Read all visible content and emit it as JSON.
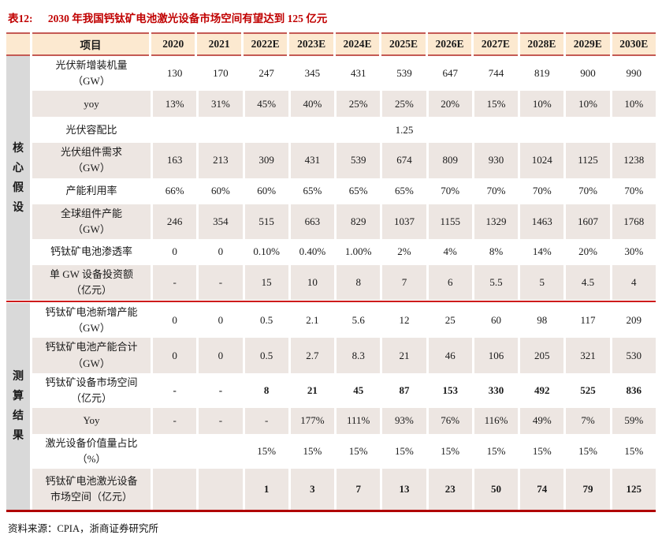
{
  "title": {
    "tag": "表12:",
    "text": "2030 年我国钙钛矿电池激光设备市场空间有望达到 125 亿元"
  },
  "colors": {
    "title_red": "#C00000",
    "header_bg": "#FCE9D0",
    "header_border": "#C45A54",
    "stripe_bg": "#EDE6E2",
    "group_bg": "#D9D9D9",
    "section_divider": "#CE1B1B",
    "bottom_border": "#B00000"
  },
  "table": {
    "header": [
      "项目",
      "2020",
      "2021",
      "2022E",
      "2023E",
      "2024E",
      "2025E",
      "2026E",
      "2027E",
      "2028E",
      "2029E",
      "2030E"
    ],
    "groups": [
      {
        "label": "核心假设",
        "rows": [
          {
            "label": "光伏新增装机量\n（GW）",
            "bold": false,
            "values": [
              "130",
              "170",
              "247",
              "345",
              "431",
              "539",
              "647",
              "744",
              "819",
              "900",
              "990"
            ]
          },
          {
            "label": "yoy",
            "bold": false,
            "values": [
              "13%",
              "31%",
              "45%",
              "40%",
              "25%",
              "25%",
              "20%",
              "15%",
              "10%",
              "10%",
              "10%"
            ]
          },
          {
            "label": "光伏容配比",
            "bold": false,
            "values": [
              "",
              "",
              "",
              "",
              "",
              "1.25",
              "",
              "",
              "",
              "",
              ""
            ]
          },
          {
            "label": "光伏组件需求\n（GW）",
            "bold": false,
            "values": [
              "163",
              "213",
              "309",
              "431",
              "539",
              "674",
              "809",
              "930",
              "1024",
              "1125",
              "1238"
            ]
          },
          {
            "label": "产能利用率",
            "bold": false,
            "values": [
              "66%",
              "60%",
              "60%",
              "65%",
              "65%",
              "65%",
              "70%",
              "70%",
              "70%",
              "70%",
              "70%"
            ]
          },
          {
            "label": "全球组件产能\n（GW）",
            "bold": false,
            "values": [
              "246",
              "354",
              "515",
              "663",
              "829",
              "1037",
              "1155",
              "1329",
              "1463",
              "1607",
              "1768"
            ]
          },
          {
            "label": "钙钛矿电池渗透率",
            "bold": false,
            "values": [
              "0",
              "0",
              "0.10%",
              "0.40%",
              "1.00%",
              "2%",
              "4%",
              "8%",
              "14%",
              "20%",
              "30%"
            ]
          },
          {
            "label": "单 GW 设备投资额\n（亿元）",
            "bold": false,
            "values": [
              "-",
              "-",
              "15",
              "10",
              "8",
              "7",
              "6",
              "5.5",
              "5",
              "4.5",
              "4"
            ]
          }
        ]
      },
      {
        "label": "测算结果",
        "rows": [
          {
            "label": "钙钛矿电池新增产能\n（GW）",
            "bold": false,
            "values": [
              "0",
              "0",
              "0.5",
              "2.1",
              "5.6",
              "12",
              "25",
              "60",
              "98",
              "117",
              "209"
            ]
          },
          {
            "label": "钙钛矿电池产能合计\n（GW）",
            "bold": false,
            "values": [
              "0",
              "0",
              "0.5",
              "2.7",
              "8.3",
              "21",
              "46",
              "106",
              "205",
              "321",
              "530"
            ]
          },
          {
            "label": "钙钛矿设备市场空间\n（亿元）",
            "bold": true,
            "values": [
              "-",
              "-",
              "8",
              "21",
              "45",
              "87",
              "153",
              "330",
              "492",
              "525",
              "836"
            ]
          },
          {
            "label": "Yoy",
            "bold": false,
            "values": [
              "-",
              "-",
              "-",
              "177%",
              "111%",
              "93%",
              "76%",
              "116%",
              "49%",
              "7%",
              "59%"
            ]
          },
          {
            "label": "激光设备价值量占比\n（%）",
            "bold": false,
            "values": [
              "",
              "",
              "15%",
              "15%",
              "15%",
              "15%",
              "15%",
              "15%",
              "15%",
              "15%",
              "15%"
            ]
          },
          {
            "label": "钙钛矿电池激光设备\n市场空间（亿元）",
            "bold": true,
            "tall": true,
            "values": [
              "",
              "",
              "1",
              "3",
              "7",
              "13",
              "23",
              "50",
              "74",
              "79",
              "125"
            ]
          }
        ]
      }
    ]
  },
  "footer": {
    "text": "资料来源：CPIA，浙商证券研究所"
  }
}
